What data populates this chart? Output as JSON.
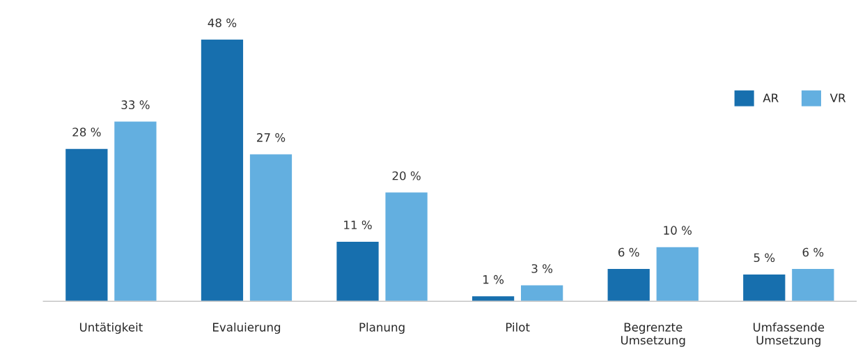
{
  "chart_data": {
    "type": "bar",
    "categories": [
      "Untätigkeit",
      "Evaluierung",
      "Planung",
      "Pilot",
      "Begrenzte\nUmsetzung",
      "Umfassende\nUmsetzung"
    ],
    "series": [
      {
        "name": "AR",
        "color": "#176fae",
        "values": [
          28,
          48,
          11,
          1,
          6,
          5
        ],
        "value_labels": [
          "28 %",
          "48 %",
          "11 %",
          "1 %",
          "6 %",
          "5 %"
        ]
      },
      {
        "name": "VR",
        "color": "#63afe0",
        "values": [
          33,
          27,
          20,
          3,
          10,
          6
        ],
        "value_labels": [
          "33 %",
          "27 %",
          "20 %",
          "3 %",
          "10 %",
          "6 %"
        ]
      }
    ],
    "legend": "top right",
    "grid": false
  }
}
